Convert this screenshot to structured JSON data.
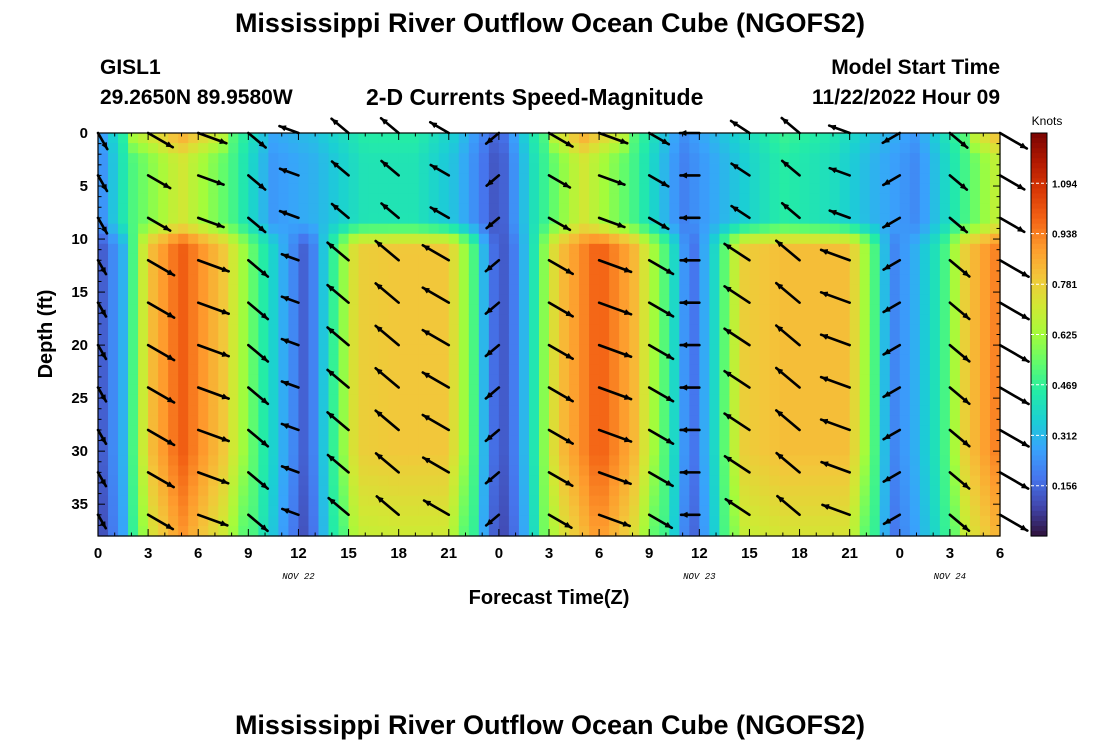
{
  "page": {
    "title_top": "Mississippi River Outflow Ocean Cube (NGOFS2)",
    "title_bottom": "Mississippi River Outflow Ocean Cube (NGOFS2)",
    "station": "GISL1",
    "coords": "29.2650N  89.9580W",
    "subtitle": "2-D Currents Speed-Magnitude",
    "model_start_label": "Model Start Time",
    "model_start_value": "11/22/2022 Hour 09"
  },
  "chart_data": {
    "type": "heatmap",
    "title": "2-D Currents Speed-Magnitude",
    "xlabel": "Forecast Time(Z)",
    "ylabel": "Depth (ft)",
    "x_range_hours": [
      0,
      54
    ],
    "y_range_ft": [
      0,
      38
    ],
    "y_inverted": true,
    "x_ticks": [
      {
        "h": 0,
        "label": "0"
      },
      {
        "h": 3,
        "label": "3"
      },
      {
        "h": 6,
        "label": "6"
      },
      {
        "h": 9,
        "label": "9"
      },
      {
        "h": 12,
        "label": "12"
      },
      {
        "h": 15,
        "label": "15"
      },
      {
        "h": 18,
        "label": "18"
      },
      {
        "h": 21,
        "label": "21"
      },
      {
        "h": 24,
        "label": "0"
      },
      {
        "h": 27,
        "label": "3"
      },
      {
        "h": 30,
        "label": "6"
      },
      {
        "h": 33,
        "label": "9"
      },
      {
        "h": 36,
        "label": "12"
      },
      {
        "h": 39,
        "label": "15"
      },
      {
        "h": 42,
        "label": "18"
      },
      {
        "h": 45,
        "label": "21"
      },
      {
        "h": 48,
        "label": "0"
      },
      {
        "h": 51,
        "label": "3"
      },
      {
        "h": 54,
        "label": "6"
      }
    ],
    "date_labels": [
      {
        "h": 12,
        "label": "NOV 22"
      },
      {
        "h": 36,
        "label": "NOV 23"
      },
      {
        "h": 51,
        "label": "NOV 24"
      }
    ],
    "y_ticks": [
      0,
      5,
      10,
      15,
      20,
      25,
      30,
      35
    ],
    "colorbar": {
      "unit": "Knots",
      "min": 0.0,
      "max": 1.25,
      "labels": [
        "1.094",
        "0.938",
        "0.781",
        "0.625",
        "0.469",
        "0.312",
        "0.156"
      ],
      "colors": [
        "#30123b",
        "#4145ab",
        "#4675ed",
        "#39a2fc",
        "#1bcfd4",
        "#24eca6",
        "#61fc6c",
        "#a4fc3b",
        "#d1e834",
        "#f3c63a",
        "#fe9b2d",
        "#f36315",
        "#d93806",
        "#b11901",
        "#7a0402"
      ]
    },
    "surface_layer": {
      "depth_ft": [
        0,
        8
      ],
      "speed_by_hour": [
        [
          0,
          0.2
        ],
        [
          2,
          0.5
        ],
        [
          5,
          0.72
        ],
        [
          8,
          0.5
        ],
        [
          10.5,
          0.25
        ],
        [
          13,
          0.3
        ],
        [
          16,
          0.42
        ],
        [
          19,
          0.42
        ],
        [
          21.5,
          0.32
        ],
        [
          24,
          0.1
        ],
        [
          26,
          0.4
        ],
        [
          29,
          0.72
        ],
        [
          32,
          0.5
        ],
        [
          35,
          0.2
        ],
        [
          38,
          0.33
        ],
        [
          41,
          0.45
        ],
        [
          44,
          0.4
        ],
        [
          46.5,
          0.3
        ],
        [
          49,
          0.22
        ],
        [
          52,
          0.5
        ],
        [
          54,
          0.7
        ]
      ]
    },
    "deep_layer": {
      "depth_ft": [
        11,
        38
      ],
      "speed_by_hour": [
        [
          0,
          0.1
        ],
        [
          1.5,
          0.3
        ],
        [
          3,
          0.8
        ],
        [
          5,
          1.0
        ],
        [
          7.5,
          0.8
        ],
        [
          9.5,
          0.5
        ],
        [
          11,
          0.3
        ],
        [
          12.5,
          0.12
        ],
        [
          14,
          0.45
        ],
        [
          15.5,
          0.78
        ],
        [
          18,
          0.8
        ],
        [
          21,
          0.8
        ],
        [
          22.5,
          0.5
        ],
        [
          23.5,
          0.18
        ],
        [
          24.5,
          0.12
        ],
        [
          26,
          0.4
        ],
        [
          27.5,
          0.8
        ],
        [
          30,
          1.0
        ],
        [
          32,
          0.85
        ],
        [
          34,
          0.5
        ],
        [
          35.5,
          0.15
        ],
        [
          37,
          0.4
        ],
        [
          38.5,
          0.78
        ],
        [
          41,
          0.82
        ],
        [
          45,
          0.82
        ],
        [
          46.5,
          0.5
        ],
        [
          47.5,
          0.2
        ],
        [
          49,
          0.3
        ],
        [
          50.5,
          0.45
        ],
        [
          52,
          0.8
        ],
        [
          54,
          0.95
        ]
      ]
    },
    "vectors": {
      "x_hours": [
        0,
        3,
        6,
        9,
        12,
        15,
        18,
        21,
        24,
        27,
        30,
        33,
        36,
        39,
        42,
        45,
        48,
        51,
        54
      ],
      "depths_ft": [
        0,
        4,
        8,
        12,
        16,
        20,
        24,
        28,
        32,
        36
      ],
      "direction_deg_by_hour": [
        [
          0,
          300
        ],
        [
          3,
          330
        ],
        [
          6,
          340
        ],
        [
          9,
          320
        ],
        [
          11,
          200
        ],
        [
          12,
          160
        ],
        [
          15,
          140
        ],
        [
          18,
          140
        ],
        [
          21,
          150
        ],
        [
          23,
          180
        ],
        [
          24,
          220
        ],
        [
          27,
          330
        ],
        [
          30,
          340
        ],
        [
          33,
          330
        ],
        [
          35,
          200
        ],
        [
          37,
          160
        ],
        [
          40,
          140
        ],
        [
          43,
          140
        ],
        [
          46,
          170
        ],
        [
          48,
          210
        ],
        [
          51,
          320
        ],
        [
          54,
          330
        ]
      ]
    }
  }
}
